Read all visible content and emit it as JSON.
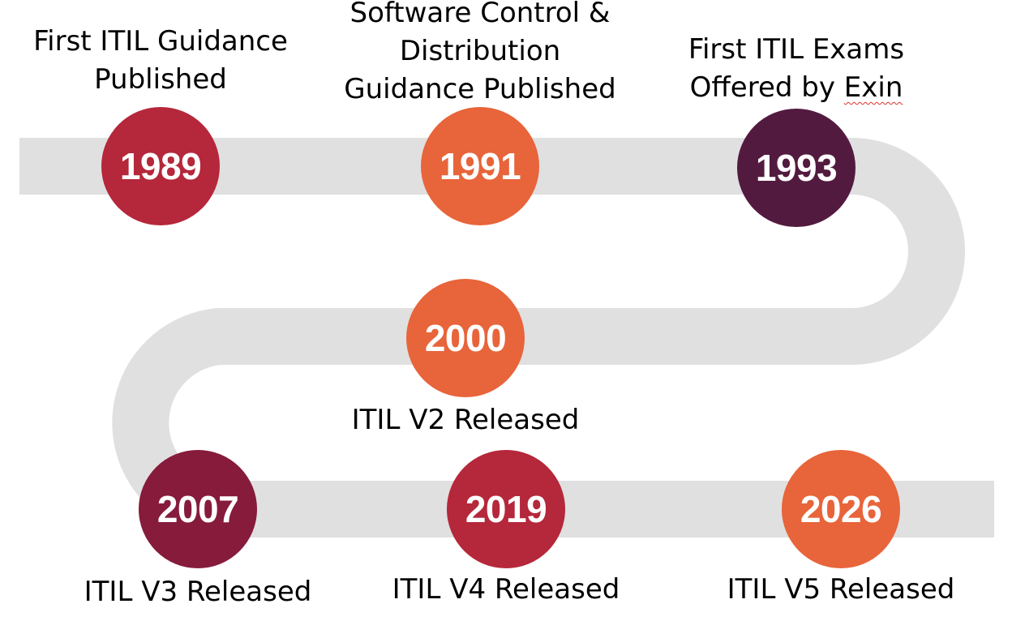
{
  "colors": {
    "road": "#e0e0e0",
    "crimson": "#b5273a",
    "orange": "#e8643a",
    "plum": "#531a3f",
    "wine": "#861b3c",
    "spellcheck_underline": "#d9302c"
  },
  "milestones": [
    {
      "year": "1989",
      "label_lines": [
        "First ITIL Guidance",
        "Published"
      ],
      "color": "crimson"
    },
    {
      "year": "1991",
      "label_lines": [
        "Software Control &",
        "Distribution",
        "Guidance Published"
      ],
      "color": "orange"
    },
    {
      "year": "1993",
      "label_lines": [
        "First ITIL Exams",
        "Offered by ",
        "Exin"
      ],
      "color": "plum"
    },
    {
      "year": "2000",
      "label_lines": [
        "ITIL V2 Released"
      ],
      "color": "orange"
    },
    {
      "year": "2007",
      "label_lines": [
        "ITIL V3 Released"
      ],
      "color": "wine"
    },
    {
      "year": "2019",
      "label_lines": [
        "ITIL V4 Released"
      ],
      "color": "crimson"
    },
    {
      "year": "2026",
      "label_lines": [
        "ITIL V5 Released"
      ],
      "color": "orange"
    }
  ]
}
